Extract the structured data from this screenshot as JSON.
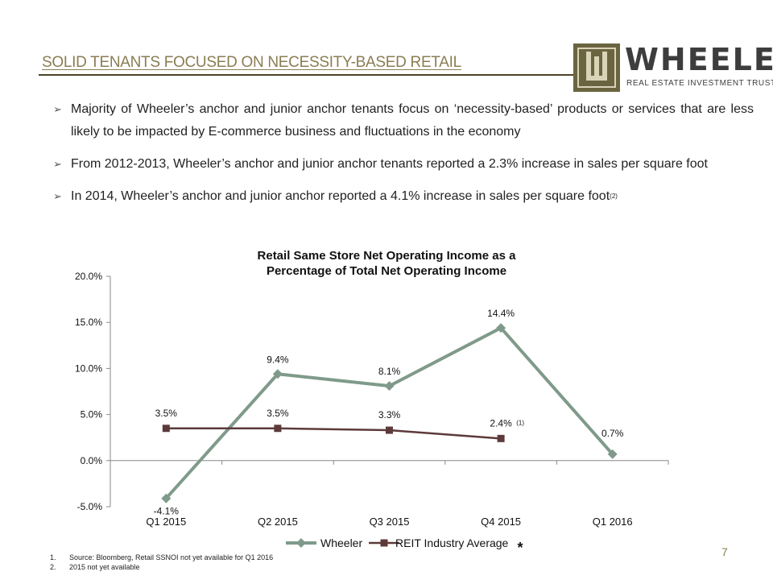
{
  "header": {
    "title": "SOLID TENANTS FOCUSED ON NECESSITY-BASED RETAIL"
  },
  "logo": {
    "mark": "W",
    "name": "WHEELER",
    "tagline": "REAL ESTATE INVESTMENT TRUST"
  },
  "bullets": [
    {
      "text": "Majority of Wheeler’s anchor and junior anchor tenants focus on ‘necessity-based’ products or services that are less likely to be impacted by E-commerce business and fluctuations in the economy",
      "sup": ""
    },
    {
      "text": "From 2012-2013, Wheeler’s anchor and junior anchor tenants reported a 2.3% increase in sales per square foot",
      "sup": ""
    },
    {
      "text": "In 2014, Wheeler’s anchor and junior anchor reported a 4.1% increase in sales per square foot",
      "sup": "(2)"
    }
  ],
  "chart_data": {
    "type": "line",
    "title_line1": "Retail Same Store Net Operating Income as a",
    "title_line2": "Percentage of Total Net Operating Income",
    "categories": [
      "Q1 2015",
      "Q2 2015",
      "Q3 2015",
      "Q4 2015",
      "Q1 2016"
    ],
    "series": [
      {
        "name": "Wheeler",
        "values": [
          -4.1,
          9.4,
          8.1,
          14.4,
          0.7
        ],
        "labels": [
          "-4.1%",
          "9.4%",
          "8.1%",
          "14.4%",
          "0.7%"
        ],
        "color": "#7f9a8a",
        "marker": "diamond"
      },
      {
        "name": "REIT Industry Average",
        "values": [
          3.5,
          3.5,
          3.3,
          2.4,
          null
        ],
        "labels": [
          "3.5%",
          "3.5%",
          "3.3%",
          "2.4%",
          ""
        ],
        "color": "#5c3a3a",
        "marker": "square"
      }
    ],
    "yticks": [
      "20.0%",
      "15.0%",
      "10.0%",
      "5.0%",
      "0.0%",
      "-5.0%"
    ],
    "ylim": [
      -5,
      20
    ],
    "annotation": "(1)",
    "legend_mark": "*",
    "legend_position": "bottom"
  },
  "footnotes": [
    {
      "num": "1.",
      "text": "Source: Bloomberg, Retail SSNOI not yet available for Q1 2016"
    },
    {
      "num": "2.",
      "text": "2015 not yet available"
    }
  ],
  "page_number": "7"
}
